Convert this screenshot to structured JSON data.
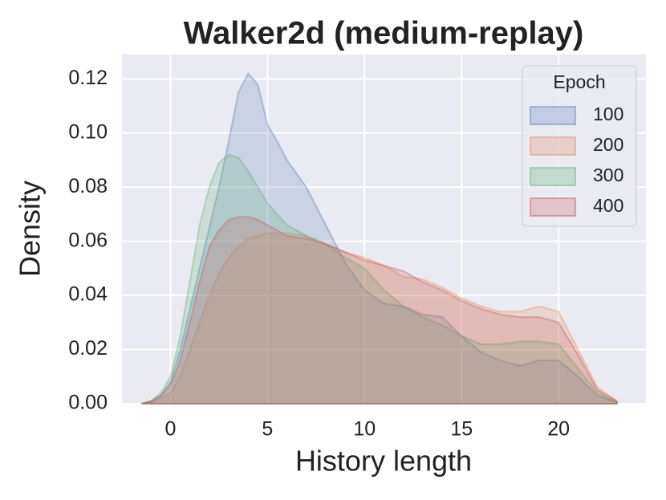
{
  "chart_data": {
    "type": "area",
    "title": "Walker2d (medium-replay)",
    "x_label": "History length",
    "y_label": "Density",
    "legend_title": "Epoch",
    "legend_position": "upper right",
    "grid": true,
    "xlim": [
      -2.5,
      24.5
    ],
    "ylim": [
      0,
      0.129
    ],
    "xticks": [
      0,
      5,
      10,
      15,
      20
    ],
    "yticks": [
      {
        "value": 0,
        "label": "0.00"
      },
      0.02,
      0.04,
      0.06,
      0.08,
      {
        "value": 0.1,
        "label": "0.10"
      },
      0.12
    ],
    "x": [
      -1.5,
      -1,
      -0.5,
      0,
      0.5,
      1,
      1.5,
      2,
      2.5,
      3,
      3.5,
      4,
      4.5,
      5,
      5.5,
      6,
      7,
      8,
      9,
      10,
      11,
      12,
      13,
      14,
      15,
      16,
      17,
      18,
      19,
      20,
      21,
      22,
      23
    ],
    "series": [
      {
        "name": "100",
        "color": "#4c72b0",
        "values": [
          0,
          0.001,
          0.003,
          0.008,
          0.02,
          0.035,
          0.05,
          0.065,
          0.08,
          0.097,
          0.115,
          0.122,
          0.118,
          0.103,
          0.097,
          0.09,
          0.08,
          0.066,
          0.052,
          0.042,
          0.037,
          0.036,
          0.033,
          0.032,
          0.025,
          0.019,
          0.016,
          0.014,
          0.016,
          0.016,
          0.01,
          0.003,
          0.0005
        ]
      },
      {
        "name": "200",
        "color": "#dd8452",
        "values": [
          0,
          0.0005,
          0.002,
          0.004,
          0.01,
          0.02,
          0.03,
          0.04,
          0.048,
          0.054,
          0.058,
          0.061,
          0.062,
          0.063,
          0.063,
          0.063,
          0.062,
          0.059,
          0.056,
          0.054,
          0.051,
          0.047,
          0.046,
          0.043,
          0.039,
          0.036,
          0.034,
          0.034,
          0.036,
          0.034,
          0.02,
          0.006,
          0.001
        ]
      },
      {
        "name": "300",
        "color": "#55a868",
        "values": [
          0,
          0.001,
          0.004,
          0.01,
          0.025,
          0.045,
          0.066,
          0.08,
          0.089,
          0.092,
          0.091,
          0.086,
          0.08,
          0.074,
          0.07,
          0.066,
          0.062,
          0.059,
          0.054,
          0.05,
          0.042,
          0.036,
          0.032,
          0.029,
          0.025,
          0.022,
          0.022,
          0.023,
          0.023,
          0.022,
          0.013,
          0.004,
          0.0005
        ]
      },
      {
        "name": "400",
        "color": "#c44e52",
        "values": [
          0,
          0.0007,
          0.003,
          0.007,
          0.016,
          0.03,
          0.045,
          0.058,
          0.064,
          0.068,
          0.069,
          0.069,
          0.068,
          0.066,
          0.064,
          0.062,
          0.061,
          0.059,
          0.056,
          0.053,
          0.051,
          0.049,
          0.045,
          0.042,
          0.038,
          0.035,
          0.033,
          0.032,
          0.032,
          0.03,
          0.018,
          0.005,
          0.001
        ]
      }
    ]
  }
}
